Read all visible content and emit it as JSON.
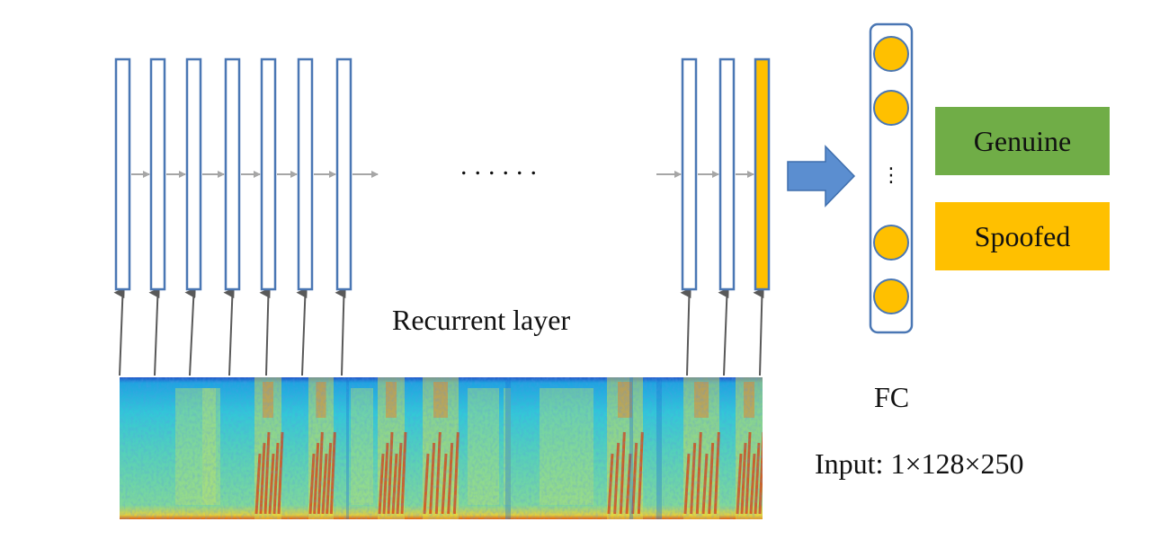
{
  "labels": {
    "ellipsis": "......",
    "recurrent_layer": "Recurrent layer",
    "fc": "FC",
    "input": "Input: 1×128×250",
    "fc_ellipsis": "⋮"
  },
  "outputs": [
    {
      "label": "Genuine",
      "color": "#70ad47"
    },
    {
      "label": "Spoofed",
      "color": "#ffc000"
    }
  ],
  "colors": {
    "cell_stroke": "#4a77b4",
    "final_cell_fill": "#ffc000",
    "neuron_fill": "#ffc000",
    "neuron_stroke": "#4a77b4",
    "big_arrow": "#5b8ed0",
    "recurrent_arrow": "#a6a6a6",
    "input_arrow": "#595959"
  }
}
